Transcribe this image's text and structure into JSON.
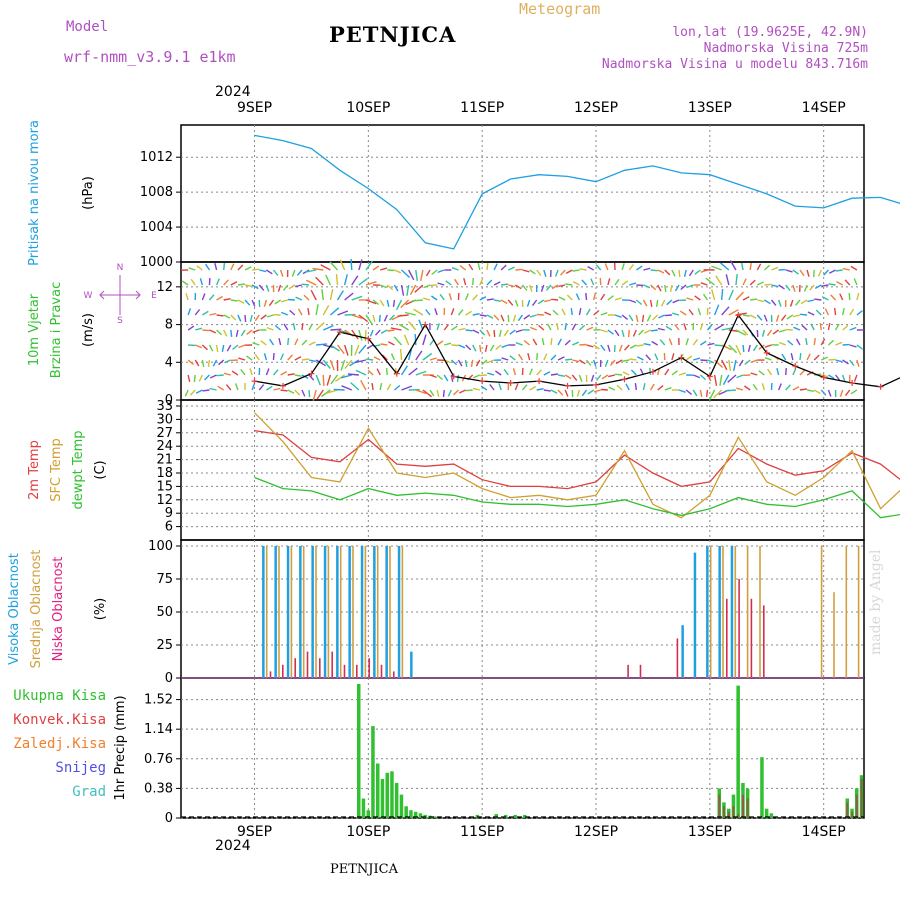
{
  "header": {
    "model_label": "Model",
    "model_name": "wrf-nmm_v3.9.1 e1km",
    "station": "PETNJICA",
    "product": "Meteogram",
    "lonlat": "lon,lat (19.9625E, 42.9N)",
    "altitude": "Nadmorska Visina 725m",
    "model_altitude": "Nadmorska Visina u modelu 843.716m",
    "year_top": "2024",
    "year_bottom": "2024",
    "footer_station": "PETNJICA",
    "watermark": "made by Angel"
  },
  "colors": {
    "pressure": "#1fa0e0",
    "wind_speed": "#000000",
    "temp_2m": "#e04040",
    "temp_sfc": "#d0a030",
    "temp_dew": "#30c030",
    "cloud_high": "#20a0e0",
    "cloud_mid": "#d0a040",
    "cloud_low": "#d03050",
    "precip_total": "#30c030",
    "precip_conv": "#e04040",
    "precip_strat": "#f08030",
    "precip_snow": "#5050e0",
    "precip_hail": "#40c0c0"
  },
  "chart_data": [
    {
      "type": "line",
      "panel": "pressure",
      "ylabel_title": "Pritisak na nivou mora",
      "ylabel_unit": "(hPa)",
      "x_ticks": [
        "9SEP",
        "10SEP",
        "11SEP",
        "12SEP",
        "13SEP",
        "14SEP"
      ],
      "x_hours": [
        0,
        6,
        12,
        18,
        24,
        30,
        36,
        42,
        48,
        54,
        60,
        66,
        72,
        78,
        84,
        90,
        96,
        102,
        108,
        114,
        120,
        126,
        132,
        138
      ],
      "ylim": [
        1000,
        1015
      ],
      "y_ticks": [
        1000,
        1004,
        1008,
        1012
      ],
      "series": [
        {
          "values": [
            1014.5,
            1013.9,
            1013.0,
            1010.5,
            1008.4,
            1006.0,
            1002.2,
            1001.5,
            1007.8,
            1009.5,
            1010.0,
            1009.8,
            1009.2,
            1010.5,
            1011.0,
            1010.2,
            1010.0,
            1008.9,
            1007.8,
            1006.4,
            1006.2,
            1007.3,
            1007.4,
            1006.4
          ]
        }
      ]
    },
    {
      "type": "line",
      "panel": "wind",
      "ylabel_title": "10m Vjetar",
      "ylabel_title2": "Brzina i Pravac",
      "ylabel_unit": "(m/s)",
      "compass": {
        "n": "N",
        "s": "S",
        "e": "E",
        "w": "W"
      },
      "ylim": [
        0,
        14
      ],
      "y_ticks": [
        0,
        4,
        8,
        12
      ],
      "series": [
        {
          "values": [
            2.0,
            1.5,
            2.8,
            7.2,
            6.5,
            2.8,
            8.0,
            2.5,
            2.0,
            1.8,
            2.0,
            1.5,
            1.6,
            2.2,
            3.0,
            4.5,
            2.5,
            9.0,
            5.0,
            3.6,
            2.4,
            1.8,
            1.4,
            2.8
          ]
        }
      ]
    },
    {
      "type": "line",
      "panel": "temperature",
      "ylabel_titles": [
        "2m Temp",
        "SFC Temp",
        "dewpt Temp"
      ],
      "ylabel_unit": "(C)",
      "ylim": [
        3,
        33
      ],
      "y_ticks": [
        6,
        9,
        12,
        15,
        18,
        21,
        24,
        27,
        30,
        33
      ],
      "series": [
        {
          "name": "2m Temp",
          "values": [
            27.5,
            26.5,
            21.5,
            20.5,
            25.5,
            20.0,
            19.5,
            20.0,
            16.5,
            15.0,
            15.0,
            14.5,
            16.0,
            22.0,
            18.0,
            15.0,
            16.0,
            23.5,
            20.0,
            17.5,
            18.5,
            22.5,
            20.0,
            15.0
          ]
        },
        {
          "name": "SFC Temp",
          "values": [
            31.5,
            25.0,
            17.0,
            16.0,
            28.0,
            18.0,
            17.0,
            18.0,
            14.5,
            12.5,
            13.0,
            12.0,
            13.0,
            23.0,
            11.0,
            8.0,
            13.0,
            26.0,
            16.0,
            13.0,
            17.0,
            23.0,
            10.0,
            16.0
          ]
        },
        {
          "name": "dewpt Temp",
          "values": [
            17.0,
            14.5,
            14.0,
            12.0,
            14.5,
            13.0,
            13.5,
            13.0,
            11.5,
            11.0,
            11.0,
            10.5,
            11.0,
            12.0,
            10.0,
            8.5,
            10.0,
            12.5,
            11.0,
            10.5,
            12.0,
            14.0,
            8.0,
            9.0
          ]
        }
      ]
    },
    {
      "type": "bar",
      "panel": "clouds",
      "ylabel_titles": [
        "Visoka Oblacnost",
        "Srednja Oblacnost",
        "Niska Oblacnost"
      ],
      "ylabel_unit": "(%)",
      "ylim": [
        0,
        100
      ],
      "y_ticks": [
        0,
        25,
        50,
        75,
        100
      ],
      "series": [
        {
          "name": "Visoka Oblacnost",
          "values": [
            0,
            0,
            0,
            0,
            0,
            0,
            100,
            100,
            100,
            100,
            100,
            100,
            100,
            100,
            100,
            100,
            100,
            100,
            20,
            0,
            0,
            0,
            0,
            0,
            0,
            0,
            0,
            0,
            0,
            0,
            0,
            0,
            0,
            0,
            0,
            0,
            0,
            0,
            0,
            0,
            40,
            95,
            100,
            100,
            100,
            0,
            0,
            0,
            0,
            0,
            0,
            0,
            0,
            0,
            0
          ]
        },
        {
          "name": "Srednja Oblacnost",
          "values": [
            0,
            0,
            0,
            0,
            0,
            0,
            100,
            100,
            100,
            100,
            100,
            100,
            100,
            100,
            100,
            100,
            100,
            100,
            0,
            0,
            0,
            0,
            0,
            0,
            0,
            0,
            0,
            0,
            0,
            0,
            0,
            0,
            0,
            0,
            0,
            0,
            0,
            0,
            0,
            0,
            0,
            0,
            100,
            100,
            100,
            100,
            100,
            0,
            0,
            0,
            0,
            100,
            65,
            100,
            100
          ]
        },
        {
          "name": "Niska Oblacnost",
          "values": [
            0,
            0,
            0,
            0,
            0,
            0,
            5,
            10,
            15,
            20,
            15,
            20,
            10,
            10,
            15,
            10,
            5,
            0,
            0,
            0,
            0,
            0,
            0,
            0,
            0,
            0,
            0,
            0,
            0,
            0,
            0,
            0,
            0,
            0,
            0,
            10,
            10,
            0,
            0,
            30,
            0,
            0,
            0,
            60,
            75,
            60,
            55,
            0,
            0,
            0,
            0,
            0,
            0,
            0,
            0
          ]
        }
      ]
    },
    {
      "type": "bar",
      "panel": "precipitation",
      "legend": [
        "Ukupna Kisa",
        "Konvek.Kisa",
        "Zaledj.Kisa",
        "Snijeg",
        "Grad"
      ],
      "ylabel_title": "1hr Precip",
      "ylabel_unit": "(mm)",
      "ylim": [
        0,
        1.72
      ],
      "y_ticks": [
        0,
        0.38,
        0.76,
        1.14,
        1.52
      ],
      "hours": [
        37,
        38,
        39,
        40,
        41,
        42,
        43,
        44,
        45,
        46,
        47,
        48,
        49,
        50,
        51,
        52,
        53,
        62,
        66,
        68,
        70,
        72,
        113,
        114,
        115,
        116,
        117,
        118,
        119,
        122,
        123,
        124,
        140,
        141,
        142,
        143
      ],
      "series": [
        {
          "name": "Ukupna Kisa",
          "values": [
            1.72,
            0.25,
            0.1,
            1.18,
            0.7,
            0.5,
            0.58,
            0.6,
            0.45,
            0.3,
            0.15,
            0.1,
            0.08,
            0.06,
            0.04,
            0.03,
            0.02,
            0.04,
            0.05,
            0.04,
            0.04,
            0.04,
            0.38,
            0.2,
            0.12,
            0.3,
            1.7,
            0.45,
            0.38,
            0.78,
            0.12,
            0.06,
            0.25,
            0.12,
            0.38,
            0.55
          ]
        },
        {
          "name": "Konvek.Kisa",
          "values": [
            0,
            0,
            0,
            0,
            0,
            0,
            0,
            0,
            0,
            0,
            0,
            0,
            0,
            0,
            0,
            0,
            0,
            0,
            0,
            0,
            0,
            0,
            0.3,
            0.15,
            0.08,
            0.15,
            0.05,
            0.3,
            0.25,
            0,
            0,
            0,
            0.2,
            0.08,
            0.3,
            0.5
          ]
        }
      ]
    }
  ]
}
